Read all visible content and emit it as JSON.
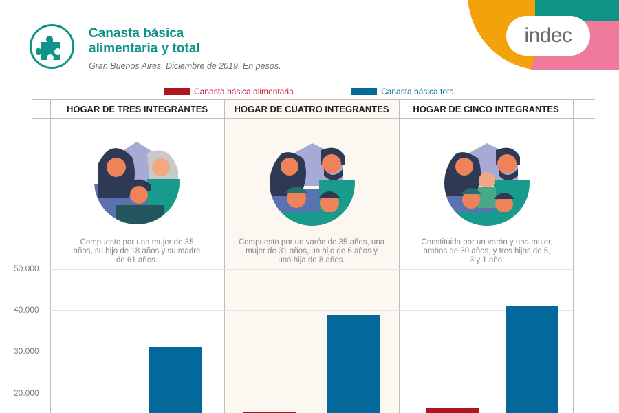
{
  "header": {
    "title_line1": "Canasta básica",
    "title_line2": "alimentaria y total",
    "subtitle": "Gran Buenos Aires. Diciembre de 2019. En pesos.",
    "brand": "indec",
    "icon": "puzzle-icon"
  },
  "colors": {
    "accent": "#0e9486",
    "alimentaria": "#b0141e",
    "total": "#04699a",
    "brand_orange": "#f4a20b",
    "brand_pink": "#f07a9c"
  },
  "legend": [
    {
      "label": "Canasta básica alimentaria",
      "color": "#b0141e",
      "text_color": "#c8102e"
    },
    {
      "label": "Canasta básica total",
      "color": "#04699a",
      "text_color": "#0a6fa8"
    }
  ],
  "columns": [
    {
      "heading": "HOGAR DE TRES INTEGRANTES",
      "description": "Compuesto por una mujer de 35 años, su hijo de 18 años y su madre de 61 años."
    },
    {
      "heading": "HOGAR DE CUATRO INTEGRANTES",
      "description": "Compuesto por un varón de 35 años, una mujer de 31 años, un hijo de 6 años y una hija de 8 años."
    },
    {
      "heading": "HOGAR DE CINCO INTEGRANTES",
      "description": "Constituido por un varón y una mujer, ambos de 30 años, y tres hijos de 5, 3 y 1 año."
    }
  ],
  "yaxis": {
    "ticks": [
      "50.000",
      "40.000",
      "30.000",
      "20.000"
    ]
  },
  "chart_data": {
    "type": "bar",
    "title": "Canasta básica alimentaria y total",
    "subtitle": "Gran Buenos Aires. Diciembre de 2019. En pesos.",
    "categories": [
      "HOGAR DE TRES INTEGRANTES",
      "HOGAR DE CUATRO INTEGRANTES",
      "HOGAR DE CINCO INTEGRANTES"
    ],
    "series": [
      {
        "name": "Canasta básica alimentaria",
        "color": "#b0141e",
        "values": [
          null,
          15700,
          16500
        ]
      },
      {
        "name": "Canasta básica total",
        "color": "#04699a",
        "values": [
          31300,
          39100,
          41100
        ]
      }
    ],
    "xlabel": "",
    "ylabel": "",
    "yticks": [
      20000,
      30000,
      40000,
      50000
    ],
    "visible_ylim": [
      15000,
      55000
    ],
    "grid": true,
    "legend_position": "top",
    "note": "Bottom of chart cropped; first alimentaria bar below visible area"
  }
}
